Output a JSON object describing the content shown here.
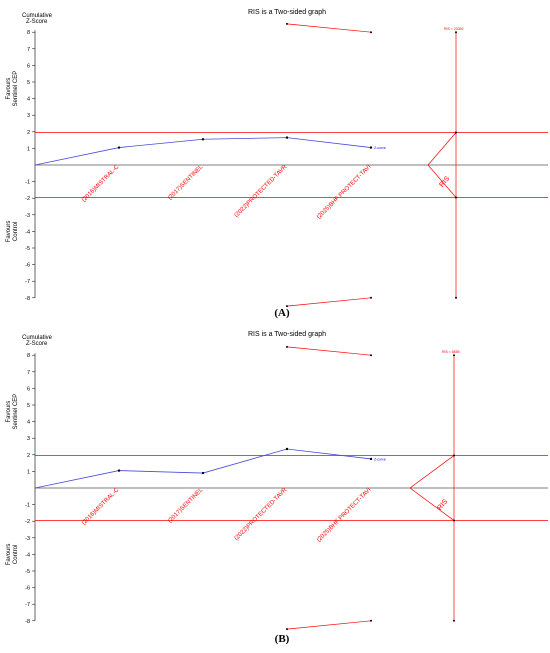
{
  "chart_data": [
    {
      "type": "line",
      "panel_label": "(A)",
      "title": "RIS is a Two-sided graph",
      "ylabel": "Cumulative Z-Score",
      "upper_region_label": [
        "Favours",
        "Sentinel CEP"
      ],
      "lower_region_label": [
        "Favours",
        "Control"
      ],
      "ylim": [
        -8,
        8
      ],
      "yticks": [
        8,
        7,
        6,
        5,
        4,
        3,
        2,
        1,
        -1,
        -2,
        -3,
        -4,
        -5,
        -6,
        -7,
        -8
      ],
      "conventional_boundary": 1.96,
      "studies": [
        "(2016)MISTRAL-C",
        "(2017)SENTINEL",
        "(2022)PROTECTED-TAVR",
        "(2025)BHF PROTECT-TAVI"
      ],
      "z_curve_name": "Z-curve",
      "z_values": [
        1.05,
        1.55,
        1.65,
        1.05
      ],
      "upper_monitoring_boundary": [
        8.5,
        8.0
      ],
      "lower_monitoring_boundary": [
        -8.5,
        -8.0
      ],
      "ris_label": "RIS",
      "ris_value_label": "RIS = 23392"
    },
    {
      "type": "line",
      "panel_label": "(B)",
      "title": "RIS is a Two-sided graph",
      "ylabel": "Cumulative Z-Score",
      "upper_region_label": [
        "Favours",
        "Sentinel CEP"
      ],
      "lower_region_label": [
        "Favours",
        "Control"
      ],
      "ylim": [
        -8,
        8
      ],
      "yticks": [
        8,
        7,
        6,
        5,
        4,
        3,
        2,
        1,
        -1,
        -2,
        -3,
        -4,
        -5,
        -6,
        -7,
        -8
      ],
      "conventional_boundary": 1.96,
      "studies": [
        "(2016)MISTRAL-C",
        "(2017)SENTINEL",
        "(2022)PROTECTED-TAVR",
        "(2025)BHF PROTECT-TAVI"
      ],
      "z_curve_name": "Z-curve",
      "z_values": [
        1.05,
        0.9,
        2.35,
        1.75
      ],
      "upper_monitoring_boundary": [
        8.5,
        8.0
      ],
      "lower_monitoring_boundary": [
        -8.5,
        -8.0
      ],
      "ris_label": "RIS",
      "ris_value_label": "RIS = 8855"
    }
  ],
  "colors": {
    "boundary": "#ff0000",
    "z_curve": "#4a4ad8",
    "axis": "#000000"
  }
}
